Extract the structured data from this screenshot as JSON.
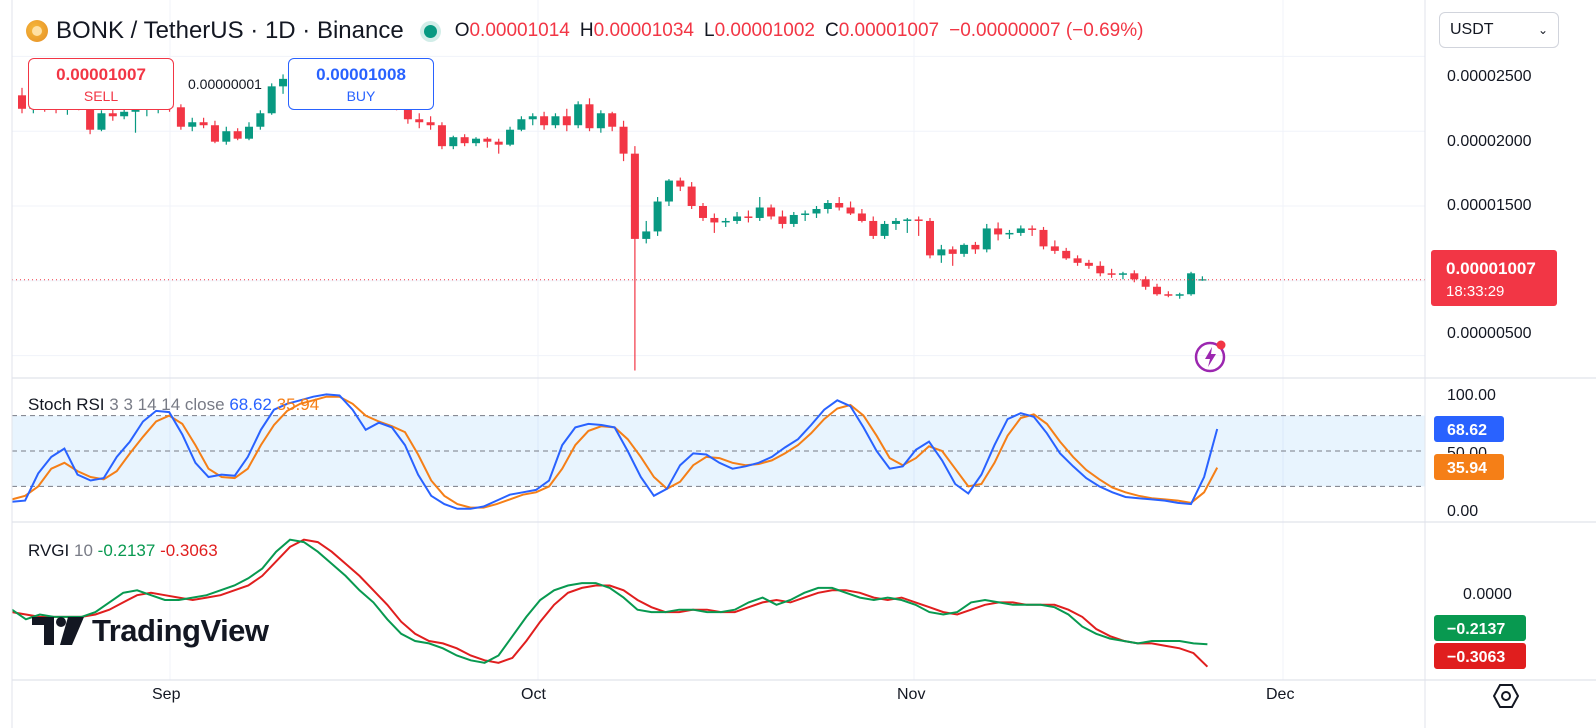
{
  "header": {
    "symbol": "BONK / TetherUS · 1D · Binance",
    "open_label": "O",
    "open": "0.00001014",
    "high_label": "H",
    "high": "0.00001034",
    "low_label": "L",
    "low": "0.00001002",
    "close_label": "C",
    "close": "0.00001007",
    "change": "−0.00000007 (−0.69%)"
  },
  "currency": {
    "value": "USDT"
  },
  "trade": {
    "sell_price": "0.00001007",
    "sell_label": "SELL",
    "spread": "0.00000001",
    "buy_price": "0.00001008",
    "buy_label": "BUY"
  },
  "price_axis": {
    "ticks": [
      "0.00002500",
      "0.00002000",
      "0.00001500",
      "0.00000500"
    ],
    "last_price": "0.00001007",
    "countdown": "18:33:29"
  },
  "stoch": {
    "name": "Stoch RSI",
    "params": "3 3 14 14 close",
    "k_value": "68.62",
    "d_value": "35.94",
    "ticks": [
      "100.00",
      "50.00",
      "0.00"
    ]
  },
  "rvgi": {
    "name": "RVGI",
    "params": "10",
    "rvgi_value": "-0.2137",
    "signal_value": "-0.3063",
    "axis_tick": "0.0000",
    "badge_rvgi": "−0.2137",
    "badge_signal": "−0.3063"
  },
  "time_axis": [
    "Sep",
    "Oct",
    "Nov",
    "Dec"
  ],
  "watermark": "TradingView",
  "colors": {
    "up": "#089981",
    "down": "#f23645",
    "stoch_k": "#2962ff",
    "stoch_d": "#f57f17",
    "rvgi": "#089950",
    "signal": "#e01e1e"
  },
  "chart_data": {
    "type": "candlestick",
    "interval": "1D",
    "candles": [
      {
        "o": 2.24e-05,
        "h": 2.29e-05,
        "l": 2.12e-05,
        "c": 2.15e-05
      },
      {
        "o": 2.15e-05,
        "h": 2.28e-05,
        "l": 2.12e-05,
        "c": 2.25e-05
      },
      {
        "o": 2.25e-05,
        "h": 2.27e-05,
        "l": 2.13e-05,
        "c": 2.17e-05
      },
      {
        "o": 2.17e-05,
        "h": 2.22e-05,
        "l": 2.12e-05,
        "c": 2.15e-05
      },
      {
        "o": 2.15e-05,
        "h": 2.24e-05,
        "l": 2.11e-05,
        "c": 2.21e-05
      },
      {
        "o": 2.21e-05,
        "h": 2.28e-05,
        "l": 2.14e-05,
        "c": 2.16e-05
      },
      {
        "o": 2.16e-05,
        "h": 2.18e-05,
        "l": 1.98e-05,
        "c": 2.01e-05
      },
      {
        "o": 2.01e-05,
        "h": 2.14e-05,
        "l": 2e-05,
        "c": 2.12e-05
      },
      {
        "o": 2.12e-05,
        "h": 2.15e-05,
        "l": 2.07e-05,
        "c": 2.1e-05
      },
      {
        "o": 2.1e-05,
        "h": 2.18e-05,
        "l": 2.08e-05,
        "c": 2.13e-05
      },
      {
        "o": 2.13e-05,
        "h": 2.2e-05,
        "l": 1.99e-05,
        "c": 2.15e-05
      },
      {
        "o": 2.15e-05,
        "h": 2.2e-05,
        "l": 2.1e-05,
        "c": 2.18e-05
      },
      {
        "o": 2.18e-05,
        "h": 2.24e-05,
        "l": 2.12e-05,
        "c": 2.22e-05
      },
      {
        "o": 2.22e-05,
        "h": 2.24e-05,
        "l": 2.13e-05,
        "c": 2.16e-05
      },
      {
        "o": 2.16e-05,
        "h": 2.18e-05,
        "l": 2.01e-05,
        "c": 2.03e-05
      },
      {
        "o": 2.03e-05,
        "h": 2.09e-05,
        "l": 2e-05,
        "c": 2.06e-05
      },
      {
        "o": 2.06e-05,
        "h": 2.09e-05,
        "l": 2.02e-05,
        "c": 2.04e-05
      },
      {
        "o": 2.04e-05,
        "h": 2.07e-05,
        "l": 1.92e-05,
        "c": 1.93e-05
      },
      {
        "o": 1.93e-05,
        "h": 2.03e-05,
        "l": 1.91e-05,
        "c": 2e-05
      },
      {
        "o": 2e-05,
        "h": 2.02e-05,
        "l": 1.94e-05,
        "c": 1.95e-05
      },
      {
        "o": 1.95e-05,
        "h": 2.06e-05,
        "l": 1.94e-05,
        "c": 2.03e-05
      },
      {
        "o": 2.03e-05,
        "h": 2.14e-05,
        "l": 2.01e-05,
        "c": 2.12e-05
      },
      {
        "o": 2.12e-05,
        "h": 2.32e-05,
        "l": 2.11e-05,
        "c": 2.3e-05
      },
      {
        "o": 2.3e-05,
        "h": 2.38e-05,
        "l": 2.25e-05,
        "c": 2.35e-05
      },
      {
        "o": 2.35e-05,
        "h": 2.37e-05,
        "l": 2.26e-05,
        "c": 2.3e-05
      },
      {
        "o": 2.3e-05,
        "h": 2.33e-05,
        "l": 2.25e-05,
        "c": 2.31e-05
      },
      {
        "o": 2.31e-05,
        "h": 2.38e-05,
        "l": 2.28e-05,
        "c": 2.35e-05
      },
      {
        "o": 2.35e-05,
        "h": 2.44e-05,
        "l": 2.32e-05,
        "c": 2.4e-05
      },
      {
        "o": 2.4e-05,
        "h": 2.46e-05,
        "l": 2.36e-05,
        "c": 2.38e-05
      },
      {
        "o": 2.38e-05,
        "h": 2.42e-05,
        "l": 2.33e-05,
        "c": 2.36e-05
      },
      {
        "o": 2.36e-05,
        "h": 2.4e-05,
        "l": 2.3e-05,
        "c": 2.32e-05
      },
      {
        "o": 2.32e-05,
        "h": 2.36e-05,
        "l": 2.28e-05,
        "c": 2.3e-05
      },
      {
        "o": 2.3e-05,
        "h": 2.33e-05,
        "l": 2.22e-05,
        "c": 2.26e-05
      },
      {
        "o": 2.26e-05,
        "h": 2.29e-05,
        "l": 2.14e-05,
        "c": 2.16e-05
      },
      {
        "o": 2.16e-05,
        "h": 2.18e-05,
        "l": 2.05e-05,
        "c": 2.08e-05
      },
      {
        "o": 2.08e-05,
        "h": 2.12e-05,
        "l": 2.02e-05,
        "c": 2.06e-05
      },
      {
        "o": 2.06e-05,
        "h": 2.1e-05,
        "l": 2.01e-05,
        "c": 2.04e-05
      },
      {
        "o": 2.04e-05,
        "h": 2.06e-05,
        "l": 1.88e-05,
        "c": 1.9e-05
      },
      {
        "o": 1.9e-05,
        "h": 1.97e-05,
        "l": 1.88e-05,
        "c": 1.96e-05
      },
      {
        "o": 1.96e-05,
        "h": 1.98e-05,
        "l": 1.9e-05,
        "c": 1.92e-05
      },
      {
        "o": 1.92e-05,
        "h": 1.96e-05,
        "l": 1.9e-05,
        "c": 1.95e-05
      },
      {
        "o": 1.95e-05,
        "h": 1.96e-05,
        "l": 1.89e-05,
        "c": 1.93e-05
      },
      {
        "o": 1.93e-05,
        "h": 1.95e-05,
        "l": 1.85e-05,
        "c": 1.91e-05
      },
      {
        "o": 1.91e-05,
        "h": 2.03e-05,
        "l": 1.9e-05,
        "c": 2.01e-05
      },
      {
        "o": 2.01e-05,
        "h": 2.1e-05,
        "l": 2e-05,
        "c": 2.08e-05
      },
      {
        "o": 2.08e-05,
        "h": 2.12e-05,
        "l": 2.04e-05,
        "c": 2.1e-05
      },
      {
        "o": 2.1e-05,
        "h": 2.13e-05,
        "l": 2.01e-05,
        "c": 2.04e-05
      },
      {
        "o": 2.04e-05,
        "h": 2.12e-05,
        "l": 2.02e-05,
        "c": 2.1e-05
      },
      {
        "o": 2.1e-05,
        "h": 2.15e-05,
        "l": 2e-05,
        "c": 2.04e-05
      },
      {
        "o": 2.04e-05,
        "h": 2.2e-05,
        "l": 2.02e-05,
        "c": 2.18e-05
      },
      {
        "o": 2.18e-05,
        "h": 2.22e-05,
        "l": 2e-05,
        "c": 2.02e-05
      },
      {
        "o": 2.02e-05,
        "h": 2.14e-05,
        "l": 1.99e-05,
        "c": 2.12e-05
      },
      {
        "o": 2.12e-05,
        "h": 2.13e-05,
        "l": 2e-05,
        "c": 2.03e-05
      },
      {
        "o": 2.03e-05,
        "h": 2.07e-05,
        "l": 1.8e-05,
        "c": 1.85e-05
      },
      {
        "o": 1.85e-05,
        "h": 1.9e-05,
        "l": 4e-06,
        "c": 1.28e-05
      },
      {
        "o": 1.28e-05,
        "h": 1.4e-05,
        "l": 1.25e-05,
        "c": 1.33e-05
      },
      {
        "o": 1.33e-05,
        "h": 1.56e-05,
        "l": 1.3e-05,
        "c": 1.53e-05
      },
      {
        "o": 1.53e-05,
        "h": 1.68e-05,
        "l": 1.5e-05,
        "c": 1.67e-05
      },
      {
        "o": 1.67e-05,
        "h": 1.69e-05,
        "l": 1.6e-05,
        "c": 1.63e-05
      },
      {
        "o": 1.63e-05,
        "h": 1.66e-05,
        "l": 1.48e-05,
        "c": 1.5e-05
      },
      {
        "o": 1.5e-05,
        "h": 1.52e-05,
        "l": 1.4e-05,
        "c": 1.42e-05
      },
      {
        "o": 1.42e-05,
        "h": 1.45e-05,
        "l": 1.32e-05,
        "c": 1.39e-05
      },
      {
        "o": 1.39e-05,
        "h": 1.42e-05,
        "l": 1.36e-05,
        "c": 1.4e-05
      },
      {
        "o": 1.4e-05,
        "h": 1.46e-05,
        "l": 1.38e-05,
        "c": 1.43e-05
      },
      {
        "o": 1.43e-05,
        "h": 1.47e-05,
        "l": 1.39e-05,
        "c": 1.42e-05
      },
      {
        "o": 1.42e-05,
        "h": 1.56e-05,
        "l": 1.4e-05,
        "c": 1.49e-05
      },
      {
        "o": 1.49e-05,
        "h": 1.51e-05,
        "l": 1.41e-05,
        "c": 1.43e-05
      },
      {
        "o": 1.43e-05,
        "h": 1.47e-05,
        "l": 1.35e-05,
        "c": 1.38e-05
      },
      {
        "o": 1.38e-05,
        "h": 1.46e-05,
        "l": 1.36e-05,
        "c": 1.44e-05
      },
      {
        "o": 1.44e-05,
        "h": 1.47e-05,
        "l": 1.4e-05,
        "c": 1.45e-05
      },
      {
        "o": 1.45e-05,
        "h": 1.5e-05,
        "l": 1.42e-05,
        "c": 1.48e-05
      },
      {
        "o": 1.48e-05,
        "h": 1.54e-05,
        "l": 1.45e-05,
        "c": 1.52e-05
      },
      {
        "o": 1.52e-05,
        "h": 1.56e-05,
        "l": 1.47e-05,
        "c": 1.49e-05
      },
      {
        "o": 1.49e-05,
        "h": 1.53e-05,
        "l": 1.44e-05,
        "c": 1.45e-05
      },
      {
        "o": 1.45e-05,
        "h": 1.48e-05,
        "l": 1.39e-05,
        "c": 1.4e-05
      },
      {
        "o": 1.4e-05,
        "h": 1.43e-05,
        "l": 1.28e-05,
        "c": 1.3e-05
      },
      {
        "o": 1.3e-05,
        "h": 1.4e-05,
        "l": 1.28e-05,
        "c": 1.38e-05
      },
      {
        "o": 1.38e-05,
        "h": 1.42e-05,
        "l": 1.34e-05,
        "c": 1.4e-05
      },
      {
        "o": 1.4e-05,
        "h": 1.42e-05,
        "l": 1.32e-05,
        "c": 1.41e-05
      },
      {
        "o": 1.41e-05,
        "h": 1.43e-05,
        "l": 1.3e-05,
        "c": 1.4e-05
      },
      {
        "o": 1.4e-05,
        "h": 1.42e-05,
        "l": 1.15e-05,
        "c": 1.17e-05
      },
      {
        "o": 1.17e-05,
        "h": 1.24e-05,
        "l": 1.12e-05,
        "c": 1.21e-05
      },
      {
        "o": 1.21e-05,
        "h": 1.23e-05,
        "l": 1.1e-05,
        "c": 1.18e-05
      },
      {
        "o": 1.18e-05,
        "h": 1.25e-05,
        "l": 1.16e-05,
        "c": 1.24e-05
      },
      {
        "o": 1.24e-05,
        "h": 1.26e-05,
        "l": 1.18e-05,
        "c": 1.21e-05
      },
      {
        "o": 1.21e-05,
        "h": 1.38e-05,
        "l": 1.19e-05,
        "c": 1.35e-05
      },
      {
        "o": 1.35e-05,
        "h": 1.39e-05,
        "l": 1.27e-05,
        "c": 1.31e-05
      },
      {
        "o": 1.31e-05,
        "h": 1.34e-05,
        "l": 1.28e-05,
        "c": 1.32e-05
      },
      {
        "o": 1.32e-05,
        "h": 1.37e-05,
        "l": 1.3e-05,
        "c": 1.35e-05
      },
      {
        "o": 1.35e-05,
        "h": 1.37e-05,
        "l": 1.3e-05,
        "c": 1.34e-05
      },
      {
        "o": 1.34e-05,
        "h": 1.36e-05,
        "l": 1.21e-05,
        "c": 1.23e-05
      },
      {
        "o": 1.23e-05,
        "h": 1.27e-05,
        "l": 1.18e-05,
        "c": 1.2e-05
      },
      {
        "o": 1.2e-05,
        "h": 1.22e-05,
        "l": 1.14e-05,
        "c": 1.15e-05
      },
      {
        "o": 1.15e-05,
        "h": 1.17e-05,
        "l": 1.1e-05,
        "c": 1.12e-05
      },
      {
        "o": 1.12e-05,
        "h": 1.14e-05,
        "l": 1.08e-05,
        "c": 1.1e-05
      },
      {
        "o": 1.1e-05,
        "h": 1.13e-05,
        "l": 1.03e-05,
        "c": 1.05e-05
      },
      {
        "o": 1.05e-05,
        "h": 1.08e-05,
        "l": 1.02e-05,
        "c": 1.04e-05
      },
      {
        "o": 1.04e-05,
        "h": 1.06e-05,
        "l": 1.01e-05,
        "c": 1.05e-05
      },
      {
        "o": 1.05e-05,
        "h": 1.07e-05,
        "l": 9.9e-06,
        "c": 1.01e-05
      },
      {
        "o": 1.01e-05,
        "h": 1.03e-05,
        "l": 9.4e-06,
        "c": 9.6e-06
      },
      {
        "o": 9.6e-06,
        "h": 9.8e-06,
        "l": 9e-06,
        "c": 9.1e-06
      },
      {
        "o": 9.1e-06,
        "h": 9.3e-06,
        "l": 8.9e-06,
        "c": 9e-06
      },
      {
        "o": 9e-06,
        "h": 9.2e-06,
        "l": 8.8e-06,
        "c": 9.1e-06
      },
      {
        "o": 9.1e-06,
        "h": 1.06e-05,
        "l": 9e-06,
        "c": 1.05e-05
      },
      {
        "o": 1.01e-05,
        "h": 1.03e-05,
        "l": 1e-05,
        "c": 1.01e-05
      }
    ],
    "last_price": 1.007e-05,
    "y_range": [
      3.5e-06,
      2.65e-05
    ],
    "stoch_rsi": {
      "k": [
        7,
        8,
        31,
        45,
        52,
        30,
        25,
        27,
        45,
        58,
        75,
        84,
        83,
        64,
        40,
        28,
        30,
        29,
        45,
        68,
        85,
        90,
        93,
        96,
        98,
        97,
        85,
        68,
        74,
        70,
        55,
        30,
        12,
        5,
        1,
        1,
        3,
        8,
        13,
        15,
        17,
        25,
        55,
        70,
        73,
        72,
        70,
        50,
        28,
        12,
        18,
        38,
        48,
        47,
        40,
        35,
        37,
        40,
        45,
        53,
        60,
        72,
        85,
        93,
        88,
        70,
        50,
        35,
        37,
        51,
        58,
        42,
        22,
        14,
        30,
        55,
        77,
        82,
        79,
        65,
        48,
        37,
        27,
        20,
        15,
        11,
        10,
        9,
        8,
        6,
        5,
        28,
        68.62
      ],
      "d": [
        9,
        12,
        20,
        35,
        40,
        33,
        28,
        26,
        33,
        48,
        62,
        75,
        80,
        73,
        55,
        35,
        28,
        27,
        35,
        55,
        72,
        84,
        90,
        93,
        96,
        96,
        90,
        80,
        75,
        71,
        66,
        47,
        25,
        12,
        5,
        2,
        2,
        5,
        9,
        13,
        15,
        20,
        35,
        55,
        67,
        71,
        70,
        60,
        45,
        28,
        18,
        24,
        38,
        45,
        44,
        40,
        38,
        39,
        42,
        48,
        55,
        65,
        77,
        86,
        89,
        80,
        63,
        44,
        38,
        44,
        54,
        50,
        35,
        20,
        22,
        40,
        63,
        78,
        81,
        73,
        58,
        45,
        34,
        26,
        19,
        15,
        12,
        10,
        9,
        8,
        6,
        15,
        35.94
      ],
      "upper": 80,
      "middle": 50,
      "lower": 20,
      "ylim": [
        0,
        100
      ]
    },
    "rvgi_series": {
      "rvgi": [
        -0.07,
        -0.11,
        -0.09,
        -0.1,
        -0.1,
        -0.1,
        -0.08,
        -0.04,
        -0.0,
        0.01,
        -0.01,
        -0.03,
        -0.03,
        -0.02,
        -0.01,
        0.01,
        0.03,
        0.06,
        0.1,
        0.17,
        0.22,
        0.21,
        0.17,
        0.12,
        0.07,
        0.01,
        -0.04,
        -0.11,
        -0.17,
        -0.2,
        -0.21,
        -0.23,
        -0.26,
        -0.28,
        -0.29,
        -0.26,
        -0.18,
        -0.1,
        -0.03,
        0.01,
        0.03,
        0.04,
        0.04,
        0.02,
        -0.02,
        -0.07,
        -0.08,
        -0.08,
        -0.07,
        -0.07,
        -0.08,
        -0.08,
        -0.07,
        -0.04,
        -0.02,
        -0.05,
        -0.03,
        -0.0,
        0.02,
        0.02,
        0.0,
        -0.02,
        -0.03,
        -0.02,
        -0.03,
        -0.05,
        -0.08,
        -0.09,
        -0.08,
        -0.04,
        -0.03,
        -0.04,
        -0.05,
        -0.05,
        -0.05,
        -0.06,
        -0.09,
        -0.14,
        -0.17,
        -0.19,
        -0.2,
        -0.21,
        -0.2,
        -0.2,
        -0.2,
        -0.21,
        -0.2137
      ],
      "signal": [
        -0.08,
        -0.09,
        -0.1,
        -0.1,
        -0.1,
        -0.1,
        -0.09,
        -0.07,
        -0.04,
        -0.01,
        0.0,
        -0.01,
        -0.02,
        -0.03,
        -0.02,
        -0.01,
        0.01,
        0.03,
        0.07,
        0.13,
        0.19,
        0.22,
        0.21,
        0.17,
        0.12,
        0.07,
        0.01,
        -0.05,
        -0.12,
        -0.17,
        -0.2,
        -0.21,
        -0.23,
        -0.26,
        -0.28,
        -0.29,
        -0.27,
        -0.2,
        -0.12,
        -0.05,
        0.0,
        0.02,
        0.03,
        0.03,
        0.01,
        -0.03,
        -0.06,
        -0.08,
        -0.08,
        -0.07,
        -0.07,
        -0.08,
        -0.08,
        -0.06,
        -0.04,
        -0.03,
        -0.04,
        -0.02,
        0.0,
        0.01,
        0.01,
        -0.0,
        -0.02,
        -0.03,
        -0.02,
        -0.04,
        -0.06,
        -0.08,
        -0.09,
        -0.07,
        -0.05,
        -0.04,
        -0.04,
        -0.05,
        -0.05,
        -0.05,
        -0.07,
        -0.1,
        -0.15,
        -0.18,
        -0.2,
        -0.21,
        -0.21,
        -0.22,
        -0.23,
        -0.25,
        -0.3063
      ],
      "ylim": [
        -0.32,
        0.26
      ]
    }
  }
}
